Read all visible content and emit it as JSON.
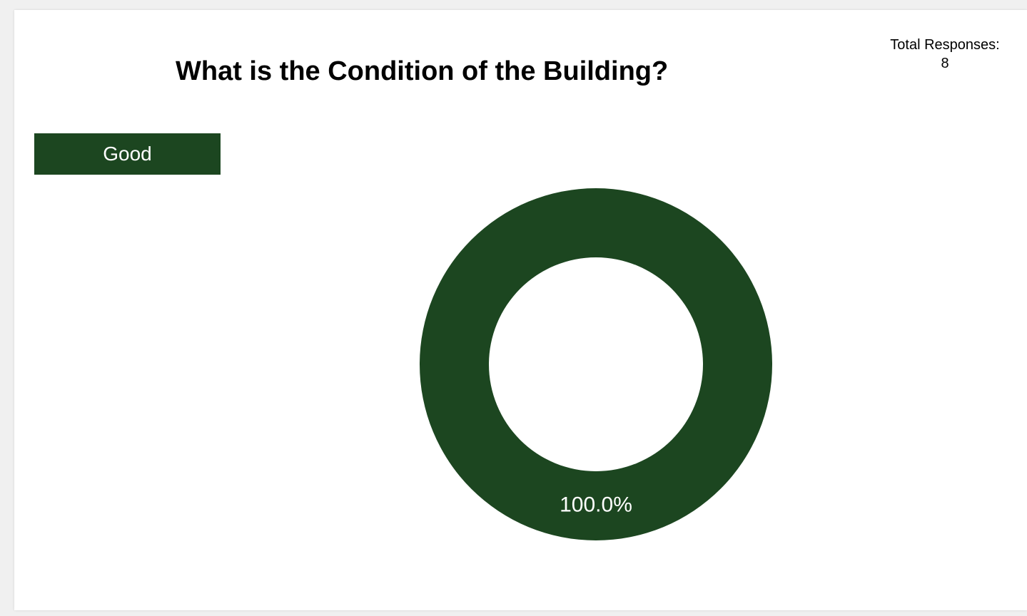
{
  "header": {
    "title": "What is the Condition of the Building?",
    "total_label": "Total Responses:",
    "total_value": "8"
  },
  "colors": {
    "good": "#1c4620",
    "background": "#ffffff"
  },
  "chart_data": {
    "type": "pie",
    "donut": true,
    "title": "What is the Condition of the Building?",
    "total_responses": 8,
    "legend_position": "top-left",
    "slices": [
      {
        "label": "Good",
        "value": 100.0,
        "display": "100.0%",
        "color": "#1c4620"
      }
    ]
  }
}
